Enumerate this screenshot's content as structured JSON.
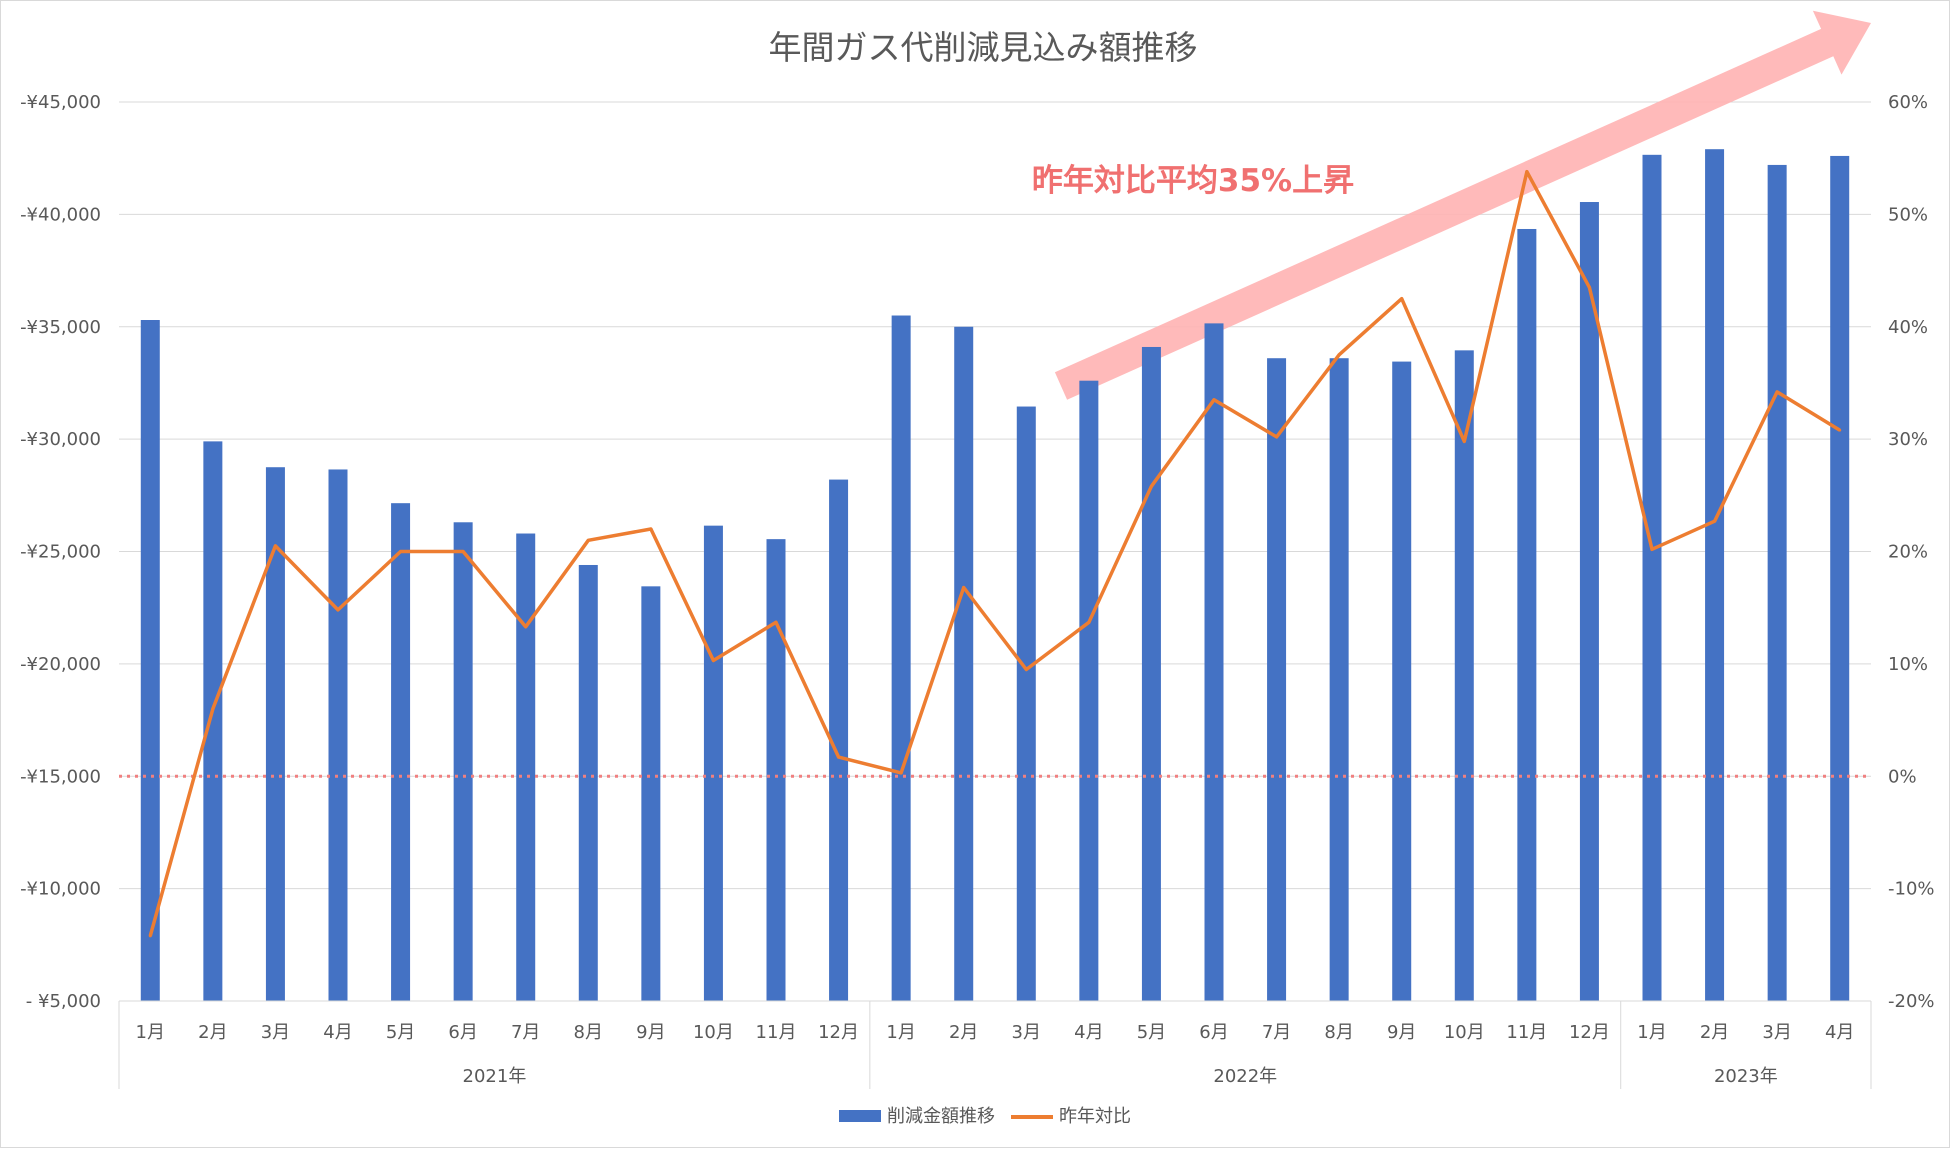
{
  "chart_data": {
    "type": "bar",
    "title": "年間ガス代削減見込み額推移",
    "annotation": "昨年対比平均35%上昇",
    "groups": [
      {
        "label": "2021年",
        "months": [
          "1月",
          "2月",
          "3月",
          "4月",
          "5月",
          "6月",
          "7月",
          "8月",
          "9月",
          "10月",
          "11月",
          "12月"
        ]
      },
      {
        "label": "2022年",
        "months": [
          "1月",
          "2月",
          "3月",
          "4月",
          "5月",
          "6月",
          "7月",
          "8月",
          "9月",
          "10月",
          "11月",
          "12月"
        ]
      },
      {
        "label": "2023年",
        "months": [
          "1月",
          "2月",
          "3月",
          "4月"
        ]
      }
    ],
    "series": [
      {
        "name": "削減金額推移",
        "axis": "left",
        "type": "bar",
        "color": "#4472c4",
        "values": [
          35300,
          29900,
          28750,
          28650,
          27150,
          26300,
          25800,
          24400,
          23450,
          26150,
          25550,
          28200,
          35500,
          35000,
          31450,
          32600,
          34100,
          35150,
          33600,
          33600,
          33450,
          33950,
          39350,
          40550,
          42650,
          42900,
          42200,
          42600
        ]
      },
      {
        "name": "昨年対比",
        "axis": "right",
        "type": "line",
        "color": "#ed7d31",
        "values": [
          -0.142,
          0.06,
          0.205,
          0.148,
          0.2,
          0.2,
          0.133,
          0.21,
          0.22,
          0.103,
          0.137,
          0.017,
          0.003,
          0.168,
          0.095,
          0.137,
          0.258,
          0.335,
          0.302,
          0.375,
          0.425,
          0.298,
          0.538,
          0.435,
          0.202,
          0.227,
          0.342,
          0.308
        ]
      }
    ],
    "y_left": {
      "min": 5000,
      "max": 45000,
      "step": 5000,
      "tick_labels": [
        "- ¥5,000",
        "-¥10,000",
        "-¥15,000",
        "-¥20,000",
        "-¥25,000",
        "-¥30,000",
        "-¥35,000",
        "-¥40,000",
        "-¥45,000"
      ]
    },
    "y_right": {
      "min": -0.2,
      "max": 0.6,
      "step": 0.1,
      "tick_labels": [
        "-20%",
        "-10%",
        "0%",
        "10%",
        "20%",
        "30%",
        "40%",
        "50%",
        "60%"
      ]
    },
    "reference_line": {
      "axis": "right",
      "value": 0,
      "style": "dotted",
      "color": "#f08080"
    },
    "trend_arrow": {
      "color": "#ffb3b3"
    },
    "annotation_color": "#f07070",
    "grid": true,
    "legend": {
      "position": "bottom",
      "entries": [
        "削減金額推移",
        "昨年対比"
      ]
    }
  }
}
